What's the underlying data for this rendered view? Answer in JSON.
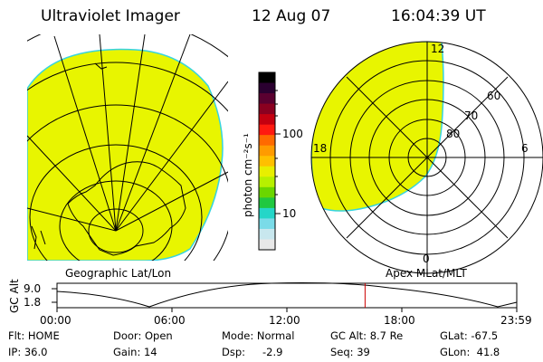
{
  "header": {
    "title": "Ultraviolet Imager",
    "date": "12 Aug 07",
    "time": "16:04:39 UT"
  },
  "colors": {
    "aurora_fill": "#e8f500",
    "edge": "#36d4e0",
    "timeline_marker": "#cc0000"
  },
  "colorbar": {
    "unit_label": "photon cm⁻²s⁻¹",
    "ticks": [
      "100",
      "10"
    ],
    "stops": [
      "#000000",
      "#2a0030",
      "#5a0030",
      "#8a0020",
      "#c40010",
      "#ff1a10",
      "#ff6a00",
      "#ff9b00",
      "#ffc000",
      "#e8ef00",
      "#b7f000",
      "#6ad600",
      "#20c840",
      "#24d6c8",
      "#7adbe8",
      "#c8e7ee",
      "#e8e8e8"
    ]
  },
  "geographic_panel": {
    "caption": "Geographic Lat/Lon"
  },
  "polar_panel": {
    "caption": "Apex MLat/MLT",
    "mlt_labels": {
      "top": "12",
      "left": "18",
      "right": "6",
      "bottom": "0"
    },
    "lat_labels": [
      "60",
      "70",
      "80"
    ]
  },
  "altitude_plot": {
    "ylabel": "GC Alt",
    "yticks": [
      "9.0",
      "1.8"
    ],
    "xticks": [
      "00:00",
      "06:00",
      "12:00",
      "18:00",
      "23:59"
    ],
    "current_time_hours": 16.08
  },
  "status": {
    "flt": "Flt: HOME",
    "ip": "IP: 36.0",
    "door": "Door: Open",
    "gain": "Gain: 14",
    "mode": "Mode: Normal",
    "dsp_label": "Dsp:",
    "dsp_value": "-2.9",
    "gc_alt": "GC Alt: 8.7 Re",
    "seq": "Seq: 39",
    "glat": "GLat: -67.5",
    "glon": "GLon:  41.8"
  }
}
